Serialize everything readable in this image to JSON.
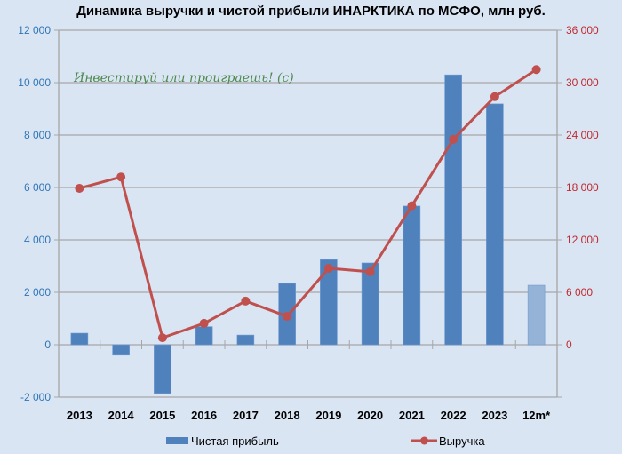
{
  "title": "Динамика выручки и чистой прибыли ИНАРКТИКА по МСФО, млн руб.",
  "watermark": "Инвестируй или проиграешь! (с)",
  "colors": {
    "background": "#dae5f4",
    "bar": "#4f81bd",
    "bar_forecast": "#95b3d7",
    "line": "#c0504d",
    "left_axis_text": "#2f75b5",
    "right_axis_text": "#c0282d",
    "grid": "#a6a6a6",
    "watermark": "#4e8a4e"
  },
  "chart_data": {
    "type": "bar+line",
    "title": "Динамика выручки и чистой прибыли ИНАРКТИКА по МСФО, млн руб.",
    "categories": [
      "2013",
      "2014",
      "2015",
      "2016",
      "2017",
      "2018",
      "2019",
      "2020",
      "2021",
      "2022",
      "2023",
      "12m*"
    ],
    "series": [
      {
        "name": "Чистая прибыль",
        "type": "bar",
        "axis": "left",
        "values": [
          440,
          -400,
          -1860,
          690,
          370,
          2340,
          3250,
          3120,
          5290,
          10300,
          9190,
          2270
        ]
      },
      {
        "name": "Выручка",
        "type": "line",
        "axis": "right",
        "values": [
          17900,
          19200,
          800,
          2450,
          5000,
          3250,
          8750,
          8350,
          15900,
          23500,
          28400,
          31500
        ]
      }
    ],
    "left_axis": {
      "ylim": [
        -2000,
        12000
      ],
      "ticks": [
        -2000,
        0,
        2000,
        4000,
        6000,
        8000,
        10000,
        12000
      ],
      "tick_labels": [
        "-2 000",
        "0",
        "2 000",
        "4 000",
        "6 000",
        "8 000",
        "10 000",
        "12 000"
      ]
    },
    "right_axis": {
      "ylim": [
        -6000,
        36000
      ],
      "ticks": [
        0,
        6000,
        12000,
        18000,
        24000,
        30000,
        36000
      ],
      "tick_labels": [
        "0",
        "6 000",
        "12 000",
        "18 000",
        "24 000",
        "30 000",
        "36 000"
      ]
    },
    "xlabel": "",
    "ylabel": "",
    "grid": true,
    "legend": {
      "position": "bottom",
      "entries": [
        "Чистая прибыль",
        "Выручка"
      ]
    },
    "notes": "Last bar (12m*) is rendered in a lighter blue shade"
  }
}
